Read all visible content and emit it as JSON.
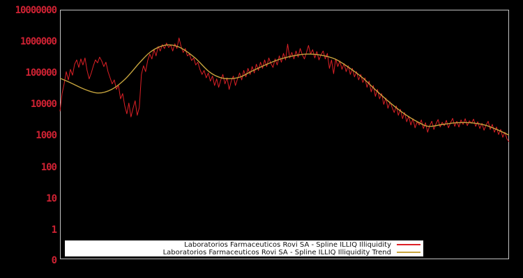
{
  "window": {
    "background": "#000000"
  },
  "axis": {
    "yticks": [
      "10000000",
      "1000000",
      "100000",
      "10000",
      "1000",
      "100",
      "10",
      "1",
      "0"
    ],
    "tick_color": "#cf2233",
    "border_color": "#c4c4c4"
  },
  "legend": {
    "items": [
      {
        "label": "Laboratorios Farmaceuticos Rovi SA - Spline ILLIQ Illiquidity"
      },
      {
        "label": "Laboratorios Farmaceuticos Rovi SA - Spline ILLIQ Illiquidity Trend"
      }
    ]
  },
  "chart_data": {
    "type": "line",
    "title": "",
    "xlabel": "",
    "ylabel": "",
    "yscale": "log (symlog with 0 at baseline)",
    "ylim": [
      0,
      10000000
    ],
    "grid": false,
    "legend_position": "bottom-center",
    "series": [
      {
        "name": "Laboratorios Farmaceuticos Rovi SA - Spline ILLIQ Illiquidity",
        "color": "#dd2026",
        "values": [
          6000,
          22000,
          45000,
          110000,
          60000,
          130000,
          85000,
          190000,
          260000,
          150000,
          280000,
          180000,
          300000,
          120000,
          65000,
          100000,
          170000,
          260000,
          210000,
          320000,
          240000,
          160000,
          220000,
          110000,
          70000,
          45000,
          60000,
          30000,
          40000,
          15000,
          22000,
          9000,
          5000,
          11000,
          4000,
          7500,
          13000,
          4500,
          8000,
          90000,
          170000,
          110000,
          250000,
          400000,
          280000,
          550000,
          350000,
          700000,
          500000,
          800000,
          600000,
          900000,
          650000,
          780000,
          500000,
          850000,
          600000,
          1300000,
          700000,
          450000,
          600000,
          350000,
          400000,
          250000,
          300000,
          180000,
          220000,
          130000,
          90000,
          120000,
          70000,
          100000,
          55000,
          80000,
          40000,
          65000,
          35000,
          60000,
          90000,
          45000,
          70000,
          30000,
          55000,
          80000,
          40000,
          65000,
          100000,
          60000,
          120000,
          75000,
          140000,
          90000,
          160000,
          100000,
          190000,
          120000,
          220000,
          140000,
          260000,
          160000,
          300000,
          200000,
          150000,
          280000,
          180000,
          350000,
          220000,
          420000,
          260000,
          830000,
          300000,
          450000,
          280000,
          500000,
          320000,
          600000,
          380000,
          280000,
          450000,
          750000,
          400000,
          550000,
          300000,
          480000,
          260000,
          380000,
          500000,
          280000,
          420000,
          140000,
          260000,
          95000,
          280000,
          160000,
          240000,
          130000,
          200000,
          110000,
          170000,
          90000,
          140000,
          75000,
          110000,
          60000,
          90000,
          50000,
          70000,
          35000,
          55000,
          25000,
          40000,
          18000,
          30000,
          15000,
          22000,
          10000,
          16000,
          7500,
          12000,
          8000,
          5500,
          9000,
          4500,
          7000,
          3500,
          5500,
          2800,
          4200,
          2200,
          3500,
          1800,
          2800,
          2200,
          3200,
          1700,
          2600,
          1300,
          2100,
          2900,
          1600,
          2400,
          3300,
          1900,
          2700,
          2100,
          3100,
          1800,
          2600,
          3600,
          2000,
          2900,
          1900,
          3200,
          2300,
          3500,
          2100,
          3000,
          2500,
          3400,
          2000,
          2800,
          1700,
          2500,
          1500,
          2200,
          2900,
          1600,
          2300,
          1300,
          1900,
          1100,
          1600,
          900,
          1300,
          800,
          650
        ]
      },
      {
        "name": "Laboratorios Farmaceuticos Rovi SA - Spline ILLIQ Illiquidity Trend",
        "color": "#c7a53e",
        "points": [
          [
            0.0,
            68000
          ],
          [
            0.022,
            50000
          ],
          [
            0.053,
            31000
          ],
          [
            0.084,
            23000
          ],
          [
            0.115,
            30000
          ],
          [
            0.146,
            66000
          ],
          [
            0.177,
            210000
          ],
          [
            0.2,
            450000
          ],
          [
            0.224,
            700000
          ],
          [
            0.247,
            780000
          ],
          [
            0.27,
            620000
          ],
          [
            0.301,
            300000
          ],
          [
            0.332,
            110000
          ],
          [
            0.356,
            72000
          ],
          [
            0.379,
            66000
          ],
          [
            0.402,
            75000
          ],
          [
            0.425,
            110000
          ],
          [
            0.457,
            180000
          ],
          [
            0.488,
            270000
          ],
          [
            0.519,
            350000
          ],
          [
            0.55,
            400000
          ],
          [
            0.581,
            370000
          ],
          [
            0.612,
            280000
          ],
          [
            0.643,
            150000
          ],
          [
            0.674,
            70000
          ],
          [
            0.705,
            27000
          ],
          [
            0.736,
            11000
          ],
          [
            0.767,
            5000
          ],
          [
            0.798,
            2700
          ],
          [
            0.821,
            2000
          ],
          [
            0.852,
            2300
          ],
          [
            0.883,
            2600
          ],
          [
            0.914,
            2600
          ],
          [
            0.946,
            2200
          ],
          [
            0.972,
            1600
          ],
          [
            1.0,
            1050
          ]
        ]
      }
    ]
  }
}
